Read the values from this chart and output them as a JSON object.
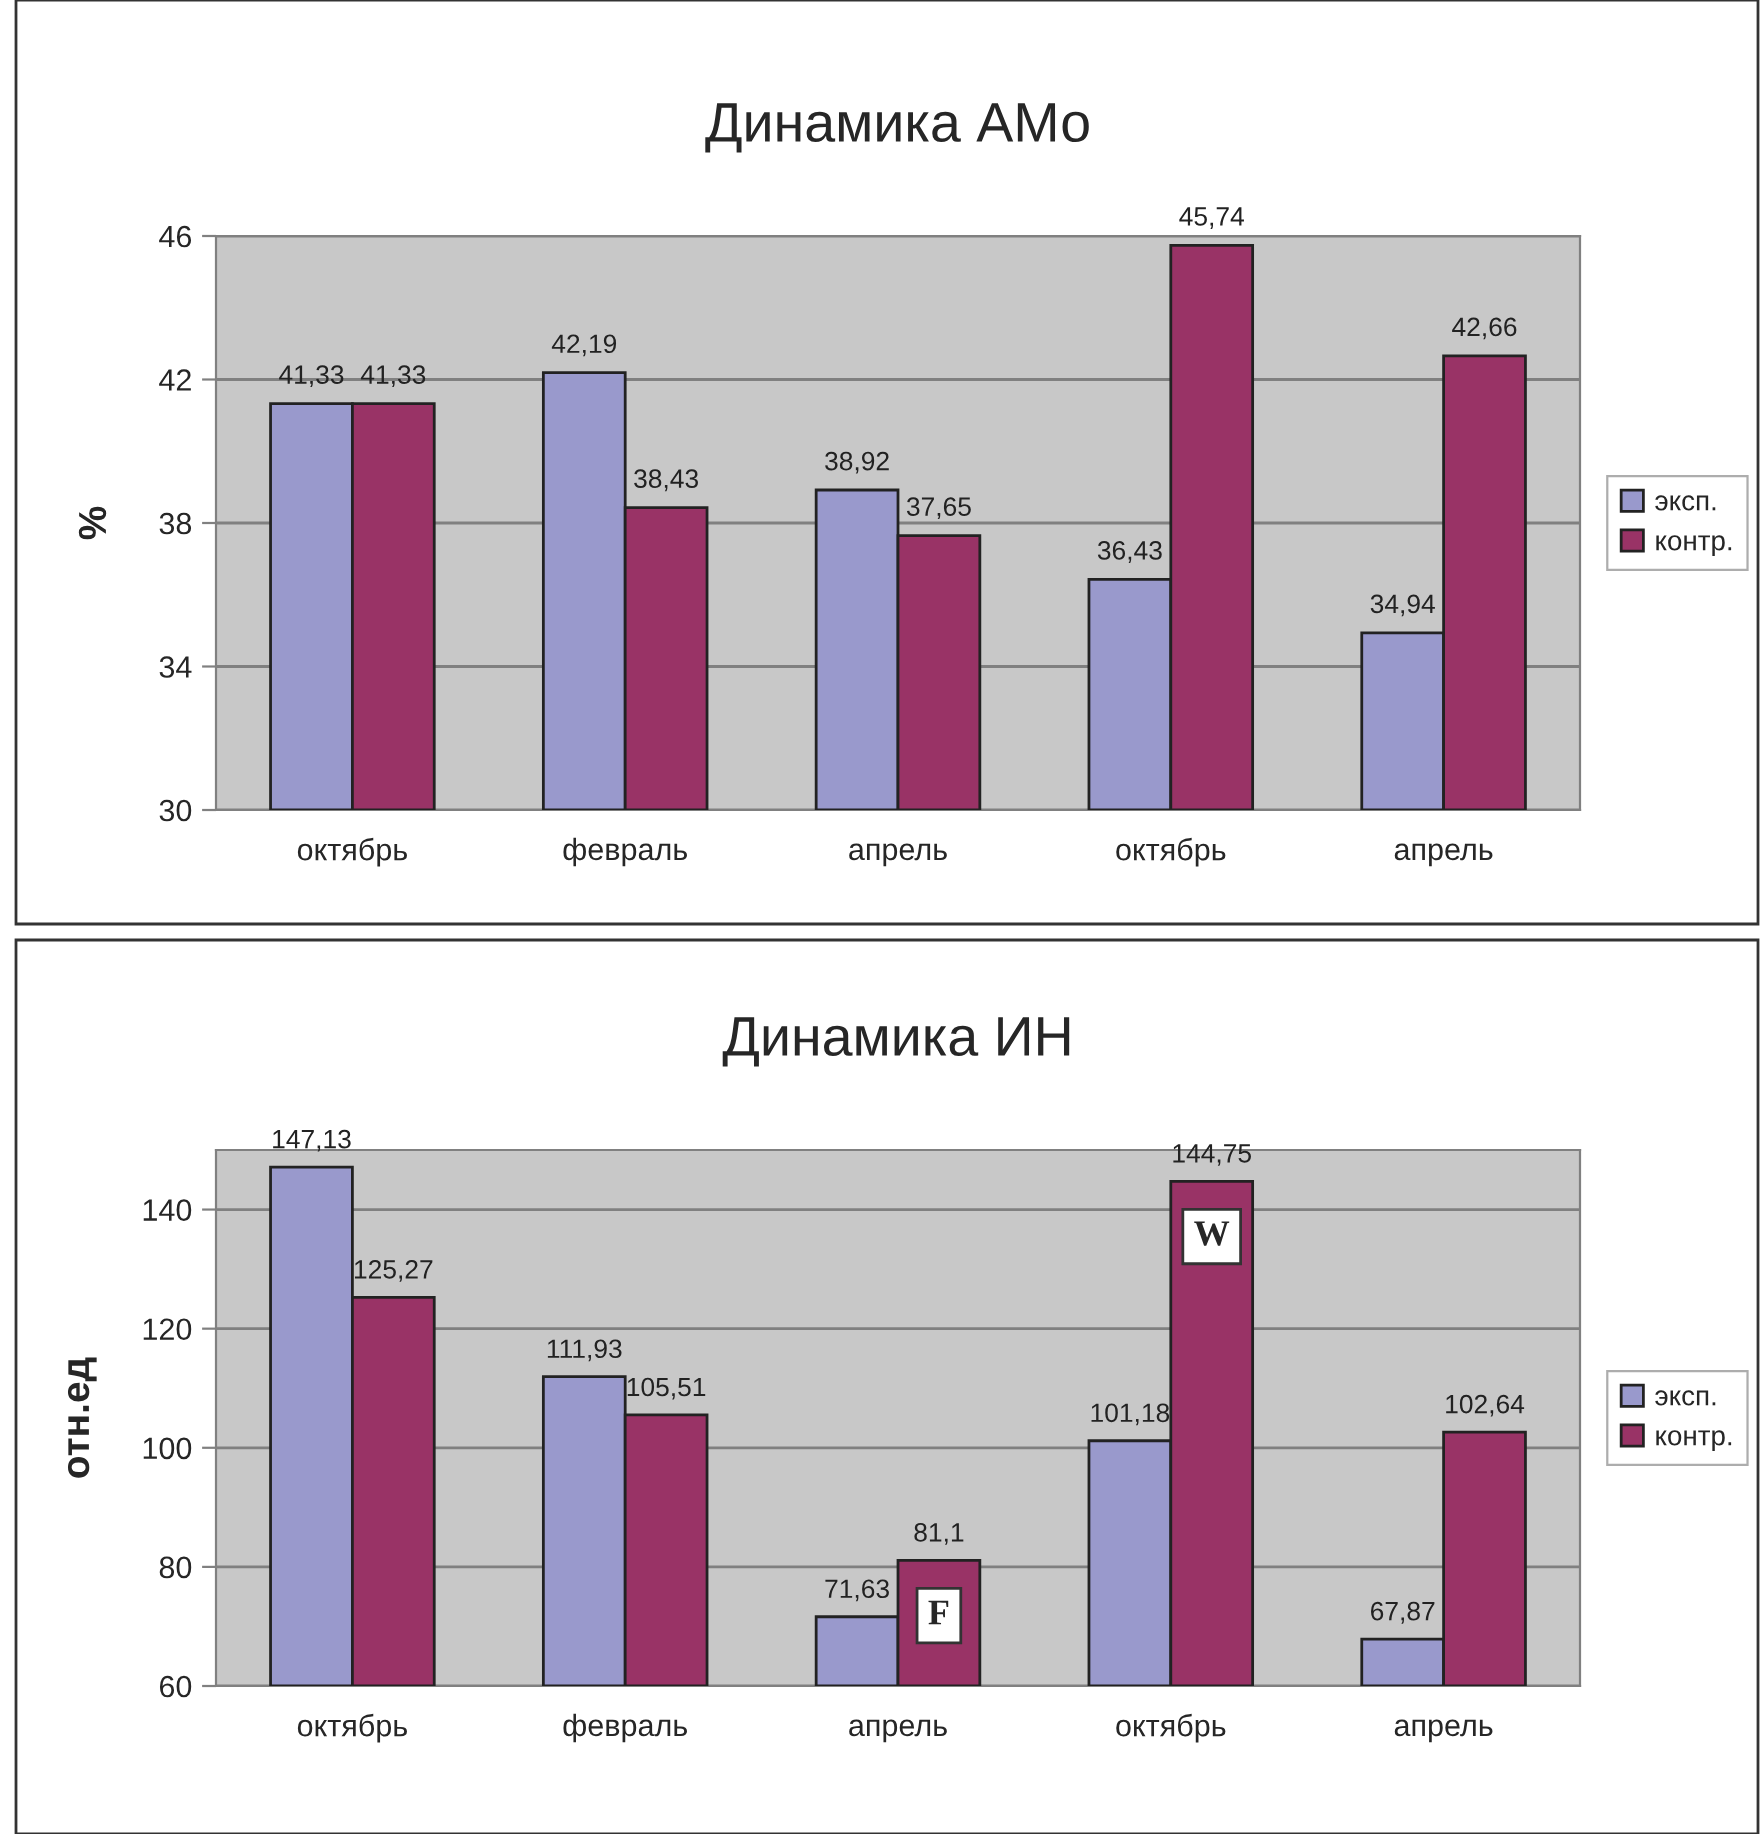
{
  "chart_data": [
    {
      "type": "bar",
      "title": "Динамика АМо",
      "ylabel": "%",
      "categories": [
        "октябрь",
        "февраль",
        "апрель",
        "октябрь",
        "апрель"
      ],
      "series": [
        {
          "name": "эксп.",
          "color": "#9999cc",
          "values": [
            41.33,
            42.19,
            38.92,
            36.43,
            34.94
          ],
          "value_labels": [
            "41,33",
            "42,19",
            "38,92",
            "36,43",
            "34,94"
          ]
        },
        {
          "name": "контр.",
          "color": "#993366",
          "values": [
            41.33,
            38.43,
            37.65,
            45.74,
            42.66
          ],
          "value_labels": [
            "41,33",
            "38,43",
            "37,65",
            "45,74",
            "42,66"
          ]
        }
      ],
      "ylim": [
        30,
        46
      ],
      "yticks": [
        30,
        34,
        38,
        42,
        46
      ],
      "grid": "y",
      "legend": "right"
    },
    {
      "type": "bar",
      "title": "Динамика ИН",
      "ylabel": "отн.ед",
      "categories": [
        "октябрь",
        "февраль",
        "апрель",
        "октябрь",
        "апрель"
      ],
      "series": [
        {
          "name": "эксп.",
          "color": "#9999cc",
          "values": [
            147.13,
            111.93,
            71.63,
            101.18,
            67.87
          ],
          "value_labels": [
            "147,13",
            "111,93",
            "71,63",
            "101,18",
            "67,87"
          ]
        },
        {
          "name": "контр.",
          "color": "#993366",
          "values": [
            125.27,
            105.51,
            81.1,
            144.75,
            102.64
          ],
          "value_labels": [
            "125,27",
            "105,51",
            "81,1",
            "144,75",
            "102,64"
          ]
        }
      ],
      "annotations": [
        {
          "text": "F",
          "x": "апрель",
          "y": 81.1
        },
        "W"
      ],
      "ylim": [
        60,
        150
      ],
      "yticks": [
        60,
        80,
        100,
        120,
        140
      ],
      "grid": "y",
      "legend": "right"
    }
  ]
}
